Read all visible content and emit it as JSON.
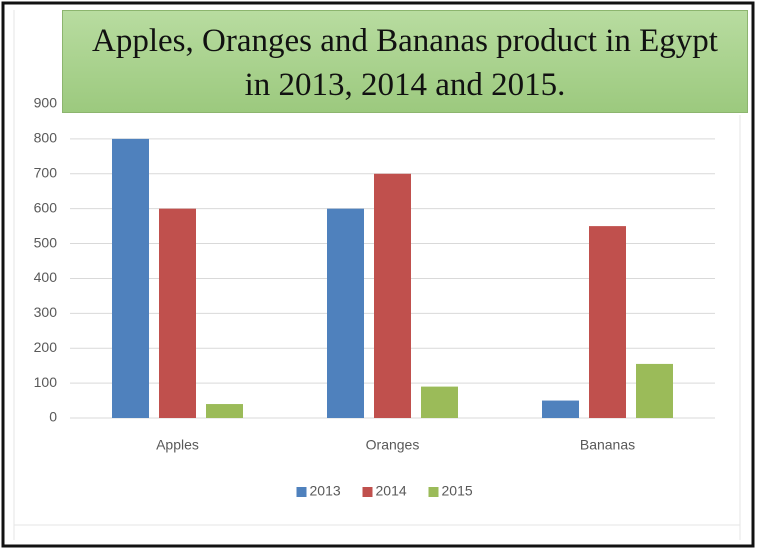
{
  "chart_data": {
    "type": "bar",
    "title": "Apples, Oranges and Bananas product in Egypt in 2013, 2014 and 2015.",
    "categories": [
      "Apples",
      "Oranges",
      "Bananas"
    ],
    "series": [
      {
        "name": "2013",
        "color": "#4f81bd",
        "values": [
          800,
          600,
          50
        ]
      },
      {
        "name": "2014",
        "color": "#c0504d",
        "values": [
          600,
          700,
          550
        ]
      },
      {
        "name": "2015",
        "color": "#9bbb59",
        "values": [
          40,
          90,
          155
        ]
      }
    ],
    "ylim": [
      0,
      900
    ],
    "yticks": [
      0,
      100,
      200,
      300,
      400,
      500,
      600,
      700,
      800,
      900
    ],
    "grid": true,
    "legend": "bottom"
  }
}
